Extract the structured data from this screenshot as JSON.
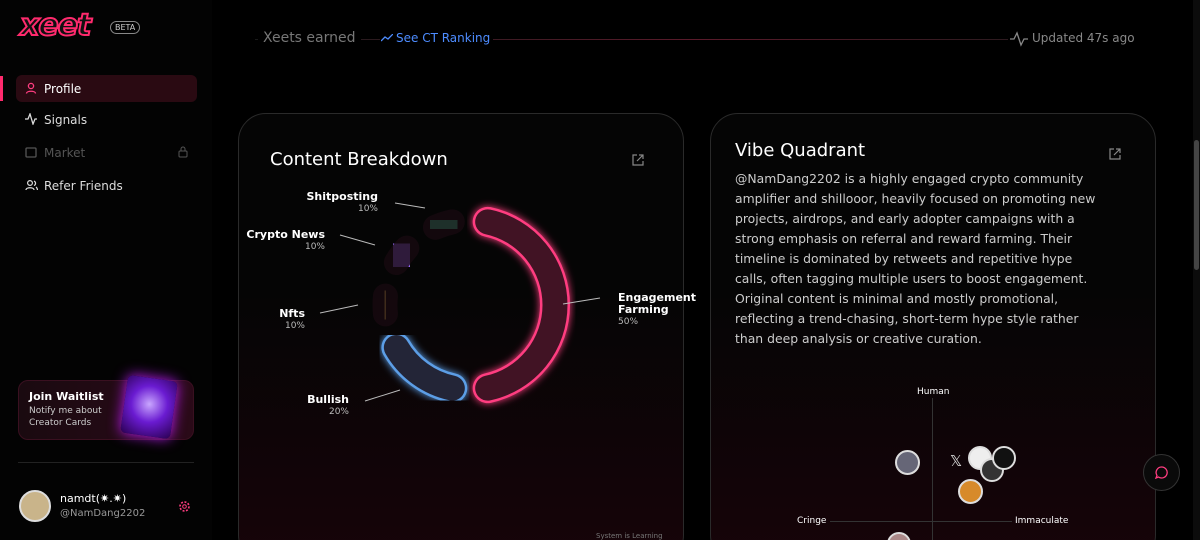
{
  "sidebar": {
    "logo": "xeet",
    "badge": "BETA",
    "nav": [
      "Profile",
      "Signals",
      "Market",
      "Refer Friends"
    ],
    "waitlist": {
      "title": "Join Waitlist",
      "text": "Notify me about Creator Cards"
    },
    "user": {
      "name": "namdt(✷.✷)",
      "handle": "@NamDang2202"
    }
  },
  "header": {
    "xeets_earned": "Xeets earned",
    "ranking_link": "See CT Ranking",
    "updated": "Updated 47s ago"
  },
  "content_breakdown": {
    "title": "Content Breakdown",
    "footer": "System is Learning",
    "chart_data": {
      "type": "donut",
      "categories": [
        "Engagement Farming",
        "Bullish",
        "Nfts",
        "Crypto News",
        "Shitposting"
      ],
      "values": [
        50,
        20,
        10,
        10,
        10
      ],
      "value_labels": [
        "50%",
        "20%",
        "10%",
        "10%",
        "10%"
      ],
      "colors": [
        "#ff3d80",
        "#5b9ee6",
        "#f2c14e",
        "#9a6bff",
        "#3ddba0"
      ]
    }
  },
  "vibe_quadrant": {
    "title": "Vibe Quadrant",
    "description": "@NamDang2202 is a highly engaged crypto community amplifier and shillooor, heavily focused on promoting new projects, airdrops, and early adopter campaigns with a strong emphasis on referral and reward farming. Their timeline is dominated by retweets and repetitive hype calls, often tagging multiple users to boost engagement. Original content is minimal and mostly promotional, reflecting a trend-chasing, short-term hype style rather than deep analysis or creative curation.",
    "axes": {
      "top": "Human",
      "left": "Cringe",
      "right": "Immaculate"
    }
  }
}
